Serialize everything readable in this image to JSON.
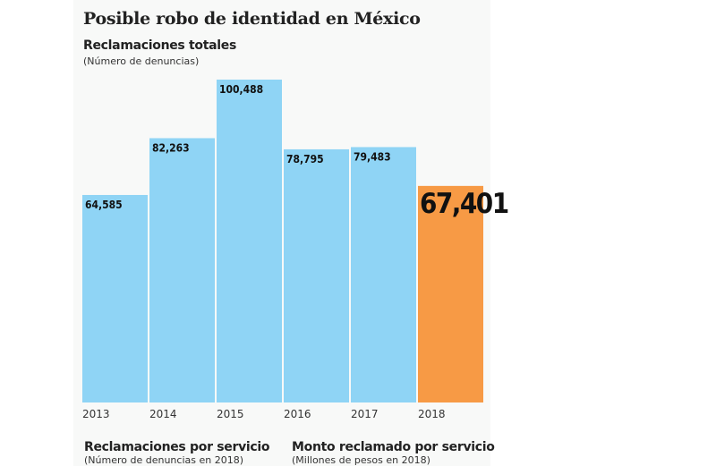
{
  "chart_data": {
    "type": "bar",
    "title": "Posible robo de identidad en México",
    "subtitle": "Reclamaciones totales",
    "note": "(Número de denuncias)",
    "categories": [
      "2013",
      "2014",
      "2015",
      "2016",
      "2017",
      "2018"
    ],
    "values": [
      64585,
      82263,
      100488,
      78795,
      79483,
      67401
    ],
    "value_labels": [
      "64,585",
      "82,263",
      "100,488",
      "78,795",
      "79,483",
      "67,401"
    ],
    "colors": [
      "#8fd4f5",
      "#8fd4f5",
      "#8fd4f5",
      "#8fd4f5",
      "#8fd4f5",
      "#f79a45"
    ],
    "ylim": [
      0,
      100488
    ],
    "grid": false,
    "xlabel": "",
    "ylabel": ""
  },
  "footer": {
    "left_title": "Reclamaciones por servicio",
    "left_note": "(Número de denuncias en 2018)",
    "right_title": "Monto reclamado por servicio",
    "right_note": "(Millones de pesos en 2018)"
  }
}
